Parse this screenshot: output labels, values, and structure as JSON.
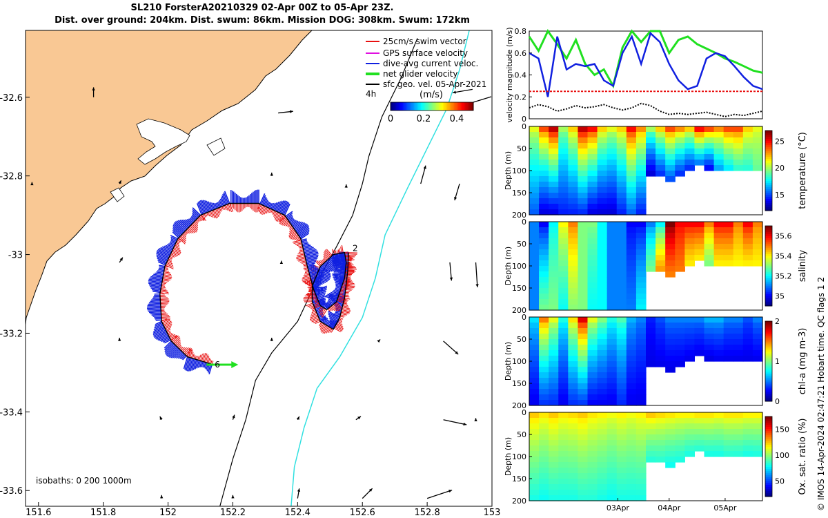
{
  "header": {
    "title_line1": "SL210 ForsterA20210329 02-Apr 00Z to 05-Apr 23Z.",
    "title_line2": "Dist. over ground: 204km. Dist. swum: 86km. Mission DOG: 308km. Swum: 172km"
  },
  "credit": "© IMOS 14-Apr-2024 02:47:21 Hobart time. QC flags 1  2",
  "colors": {
    "land": "#f9c894",
    "dive_avg": "#1020e0",
    "swim": "#e81010",
    "gps": "#e010e0",
    "net": "#20e020",
    "isobath_200": "#000000",
    "isobath_1000": "#30e0e0"
  },
  "chart_data": [
    {
      "type": "map",
      "xlabel": "",
      "ylabel": "",
      "xlim": [
        151.56,
        153.0
      ],
      "ylim": [
        -33.64,
        -32.43
      ],
      "x_ticks": [
        "151.6",
        "151.8",
        "152",
        "152.2",
        "152.4",
        "152.6",
        "152.8",
        "153"
      ],
      "y_ticks": [
        "-32.6",
        "-32.8",
        "-33",
        "-33.2",
        "-33.4",
        "-33.6"
      ],
      "legend": {
        "placement": "top-right",
        "entries": [
          "25cm/s swim vector",
          "GPS surface velocity",
          "dive-avg current veloc.",
          "net glider velocity",
          "sfc geo. vel. 05-Apr-2021"
        ],
        "scale_label": "4h"
      },
      "colorbar": {
        "label": "(m/s)",
        "ticks": [
          "0",
          "0.2",
          "0.4"
        ],
        "range": [
          0,
          0.5
        ]
      },
      "isobath_label": "isobaths: 0   200  1000m",
      "track_day_labels": [
        "2",
        "6"
      ],
      "track": [
        [
          152.557,
          -32.995
        ],
        [
          152.555,
          -33.04
        ],
        [
          152.545,
          -33.11
        ],
        [
          152.53,
          -33.16
        ],
        [
          152.51,
          -33.19
        ],
        [
          152.47,
          -33.17
        ],
        [
          152.445,
          -33.12
        ],
        [
          152.445,
          -33.08
        ],
        [
          152.47,
          -33.03
        ],
        [
          152.51,
          -33.0
        ],
        [
          152.545,
          -32.995
        ],
        [
          152.55,
          -33.02
        ],
        [
          152.545,
          -33.06
        ],
        [
          152.52,
          -33.12
        ],
        [
          152.49,
          -33.14
        ],
        [
          152.47,
          -33.13
        ],
        [
          152.45,
          -33.09
        ],
        [
          152.43,
          -33.03
        ],
        [
          152.41,
          -32.96
        ],
        [
          152.36,
          -32.9
        ],
        [
          152.28,
          -32.87
        ],
        [
          152.19,
          -32.87
        ],
        [
          152.1,
          -32.9
        ],
        [
          152.03,
          -32.96
        ],
        [
          151.99,
          -33.03
        ],
        [
          151.975,
          -33.1
        ],
        [
          151.98,
          -33.17
        ],
        [
          152.01,
          -33.22
        ],
        [
          152.06,
          -33.26
        ],
        [
          152.14,
          -33.28
        ]
      ],
      "isobath_200": [
        [
          152.77,
          -32.45
        ],
        [
          152.72,
          -32.55
        ],
        [
          152.66,
          -32.65
        ],
        [
          152.62,
          -32.75
        ],
        [
          152.6,
          -32.82
        ],
        [
          152.57,
          -32.9
        ],
        [
          152.52,
          -32.98
        ],
        [
          152.44,
          -33.1
        ],
        [
          152.4,
          -33.17
        ],
        [
          152.32,
          -33.25
        ],
        [
          152.27,
          -33.32
        ],
        [
          152.24,
          -33.42
        ],
        [
          152.2,
          -33.52
        ],
        [
          152.16,
          -33.64
        ]
      ],
      "isobath_1000": [
        [
          152.93,
          -32.43
        ],
        [
          152.9,
          -32.53
        ],
        [
          152.86,
          -32.63
        ],
        [
          152.8,
          -32.73
        ],
        [
          152.74,
          -32.83
        ],
        [
          152.67,
          -32.95
        ],
        [
          152.64,
          -33.06
        ],
        [
          152.6,
          -33.16
        ],
        [
          152.53,
          -33.26
        ],
        [
          152.46,
          -33.34
        ],
        [
          152.42,
          -33.44
        ],
        [
          152.39,
          -33.54
        ],
        [
          152.38,
          -33.64
        ]
      ],
      "vectors": [
        [
          151.77,
          -32.6,
          0.0,
          0.3
        ],
        [
          152.34,
          -32.64,
          0.45,
          0.05
        ],
        [
          152.94,
          -32.58,
          -0.6,
          -0.1
        ],
        [
          151.85,
          -32.82,
          0.05,
          0.1
        ],
        [
          152.32,
          -32.8,
          0.0,
          0.1
        ],
        [
          152.78,
          -32.82,
          0.15,
          0.55
        ],
        [
          152.55,
          -32.83,
          0.0,
          0.1
        ],
        [
          152.9,
          -32.82,
          -0.15,
          -0.5
        ],
        [
          151.85,
          -33.02,
          0.1,
          0.15
        ],
        [
          152.87,
          -33.02,
          0.05,
          -0.55
        ],
        [
          152.95,
          -33.02,
          0.05,
          -0.75
        ],
        [
          152.35,
          -33.02,
          0.0,
          0.05
        ],
        [
          151.85,
          -33.22,
          0.0,
          0.1
        ],
        [
          152.32,
          -33.22,
          0.0,
          0.1
        ],
        [
          152.85,
          -33.22,
          0.45,
          -0.4
        ],
        [
          152.65,
          -33.22,
          0.05,
          0.05
        ],
        [
          151.98,
          -33.42,
          -0.05,
          0.1
        ],
        [
          152.2,
          -33.42,
          0.05,
          0.15
        ],
        [
          152.4,
          -33.42,
          0.05,
          0.1
        ],
        [
          152.58,
          -33.42,
          0.15,
          0.1
        ],
        [
          152.85,
          -33.42,
          0.7,
          -0.15
        ],
        [
          152.95,
          -33.42,
          0.0,
          0.05
        ],
        [
          151.98,
          -33.62,
          0.0,
          0.1
        ],
        [
          152.2,
          -33.62,
          0.0,
          0.1
        ],
        [
          152.4,
          -33.62,
          0.05,
          0.3
        ],
        [
          152.6,
          -33.62,
          0.3,
          0.3
        ],
        [
          152.8,
          -33.62,
          0.75,
          0.25
        ],
        [
          151.58,
          -32.82,
          0.0,
          0.05
        ]
      ]
    },
    {
      "type": "line",
      "xlabel": "",
      "ylabel": "velocity magnitude (m/s)",
      "ylim": [
        0,
        0.8
      ],
      "y_ticks": [
        "0",
        "0.2",
        "0.4",
        "0.6",
        "0.8"
      ],
      "x": [
        0,
        0.04,
        0.08,
        0.12,
        0.16,
        0.2,
        0.24,
        0.28,
        0.32,
        0.36,
        0.4,
        0.44,
        0.48,
        0.52,
        0.56,
        0.6,
        0.64,
        0.68,
        0.72,
        0.76,
        0.8,
        0.84,
        0.88,
        0.92,
        0.96,
        1.0
      ],
      "series": [
        {
          "color": "#20e020",
          "values": [
            0.75,
            0.62,
            0.8,
            0.68,
            0.55,
            0.72,
            0.5,
            0.4,
            0.45,
            0.3,
            0.65,
            0.8,
            0.7,
            0.8,
            0.8,
            0.6,
            0.72,
            0.75,
            0.68,
            0.64,
            0.6,
            0.55,
            0.52,
            0.48,
            0.44,
            0.42
          ]
        },
        {
          "color": "#1020e0",
          "values": [
            0.6,
            0.55,
            0.2,
            0.75,
            0.45,
            0.5,
            0.48,
            0.5,
            0.35,
            0.3,
            0.6,
            0.75,
            0.5,
            0.78,
            0.7,
            0.5,
            0.35,
            0.27,
            0.3,
            0.55,
            0.6,
            0.57,
            0.48,
            0.38,
            0.3,
            0.27
          ]
        },
        {
          "color": "#e81010",
          "values": [
            0.25,
            0.25,
            0.25,
            0.25,
            0.25,
            0.25,
            0.25,
            0.25,
            0.25,
            0.25,
            0.25,
            0.25,
            0.25,
            0.25,
            0.25,
            0.25,
            0.25,
            0.25,
            0.25,
            0.25,
            0.25,
            0.25,
            0.25,
            0.25,
            0.25,
            0.25
          ]
        },
        {
          "color": "#000000",
          "values": [
            0.1,
            0.13,
            0.11,
            0.07,
            0.09,
            0.12,
            0.1,
            0.11,
            0.13,
            0.1,
            0.08,
            0.1,
            0.14,
            0.12,
            0.07,
            0.04,
            0.05,
            0.04,
            0.05,
            0.06,
            0.04,
            0.02,
            0.04,
            0.03,
            0.05,
            0.07
          ]
        }
      ]
    },
    {
      "type": "heatmap",
      "ylabel": "Depth (m)",
      "colorbar_label": "temperature (°C)",
      "y_ticks": [
        "0",
        "50",
        "100",
        "150",
        "200"
      ],
      "colorbar_ticks": [
        "15",
        "20",
        "25"
      ],
      "colorbar_range": [
        12,
        27
      ],
      "columns": [
        [
          21,
          15
        ],
        [
          24,
          13
        ],
        [
          26,
          13
        ],
        [
          20,
          14
        ],
        [
          22,
          14
        ],
        [
          26,
          14
        ],
        [
          25,
          13
        ],
        [
          22,
          13
        ],
        [
          21,
          13
        ],
        [
          22,
          14
        ],
        [
          25,
          15
        ],
        [
          23,
          14
        ],
        [
          20,
          13
        ],
        [
          22,
          14
        ],
        [
          24,
          15
        ],
        [
          23,
          14
        ],
        [
          22,
          14
        ],
        [
          25,
          15
        ],
        [
          24,
          14
        ],
        [
          23,
          16
        ],
        [
          24,
          17
        ],
        [
          24,
          18
        ],
        [
          22,
          18
        ],
        [
          21,
          19
        ]
      ]
    },
    {
      "type": "heatmap",
      "ylabel": "Depth (m)",
      "colorbar_label": "salinity",
      "y_ticks": [
        "0",
        "50",
        "100",
        "150",
        "200"
      ],
      "colorbar_ticks": [
        "35",
        "35.2",
        "35.4",
        "35.6"
      ],
      "colorbar_range": [
        34.9,
        35.7
      ],
      "columns": [
        [
          35.1,
          35.1
        ],
        [
          35.0,
          35.3
        ],
        [
          35.2,
          35.3
        ],
        [
          35.4,
          35.2
        ],
        [
          35.5,
          35.3
        ],
        [
          35.3,
          35.3
        ],
        [
          35.3,
          35.2
        ],
        [
          35.2,
          35.2
        ],
        [
          35.1,
          35.1
        ],
        [
          35.1,
          35.1
        ],
        [
          35.0,
          35.1
        ],
        [
          35.0,
          35.2
        ],
        [
          35.1,
          35.3
        ],
        [
          35.2,
          35.5
        ],
        [
          35.7,
          35.5
        ],
        [
          35.6,
          35.5
        ],
        [
          35.6,
          35.4
        ],
        [
          35.6,
          35.4
        ],
        [
          35.5,
          35.3
        ],
        [
          35.6,
          35.4
        ],
        [
          35.6,
          35.4
        ],
        [
          35.5,
          35.4
        ],
        [
          35.6,
          35.4
        ],
        [
          35.5,
          35.4
        ]
      ]
    },
    {
      "type": "heatmap",
      "ylabel": "Depth (m)",
      "colorbar_label": "chl-a (mg m-3)",
      "y_ticks": [
        "0",
        "50",
        "100",
        "150",
        "200"
      ],
      "colorbar_ticks": [
        "0",
        "1",
        "2"
      ],
      "colorbar_range": [
        0,
        2
      ],
      "columns": [
        [
          0.7,
          0.2
        ],
        [
          1.5,
          0.3
        ],
        [
          1.2,
          0.3
        ],
        [
          0.8,
          0.2
        ],
        [
          1.3,
          0.3
        ],
        [
          1.8,
          0.3
        ],
        [
          1.2,
          0.2
        ],
        [
          1.0,
          0.2
        ],
        [
          0.8,
          0.2
        ],
        [
          0.9,
          0.3
        ],
        [
          0.6,
          0.2
        ],
        [
          0.5,
          0.2
        ],
        [
          0.3,
          0.2
        ],
        [
          0.4,
          0.2
        ],
        [
          0.5,
          0.2
        ],
        [
          0.5,
          0.2
        ],
        [
          0.5,
          0.2
        ],
        [
          0.5,
          0.2
        ],
        [
          0.6,
          0.2
        ],
        [
          0.6,
          0.2
        ],
        [
          0.5,
          0.2
        ],
        [
          0.5,
          0.2
        ],
        [
          0.4,
          0.2
        ],
        [
          0.5,
          0.2
        ]
      ]
    },
    {
      "type": "heatmap",
      "xlabel": "",
      "ylabel": "Depth (m)",
      "colorbar_label": "Ox. sat. ratio (%)",
      "x_ticks": [
        "03Apr",
        "04Apr",
        "05Apr"
      ],
      "y_ticks": [
        "0",
        "50",
        "100",
        "150",
        "200"
      ],
      "colorbar_ticks": [
        "50",
        "100",
        "150"
      ],
      "colorbar_range": [
        20,
        175
      ],
      "columns": [
        [
          125,
          80
        ],
        [
          120,
          78
        ],
        [
          125,
          80
        ],
        [
          120,
          80
        ],
        [
          122,
          80
        ],
        [
          125,
          82
        ],
        [
          120,
          82
        ],
        [
          118,
          80
        ],
        [
          115,
          78
        ],
        [
          118,
          80
        ],
        [
          115,
          80
        ],
        [
          118,
          80
        ],
        [
          125,
          82
        ],
        [
          122,
          82
        ],
        [
          120,
          80
        ],
        [
          118,
          80
        ],
        [
          118,
          80
        ],
        [
          120,
          82
        ],
        [
          120,
          82
        ],
        [
          118,
          80
        ],
        [
          120,
          82
        ],
        [
          120,
          82
        ],
        [
          118,
          80
        ],
        [
          118,
          80
        ]
      ]
    }
  ]
}
